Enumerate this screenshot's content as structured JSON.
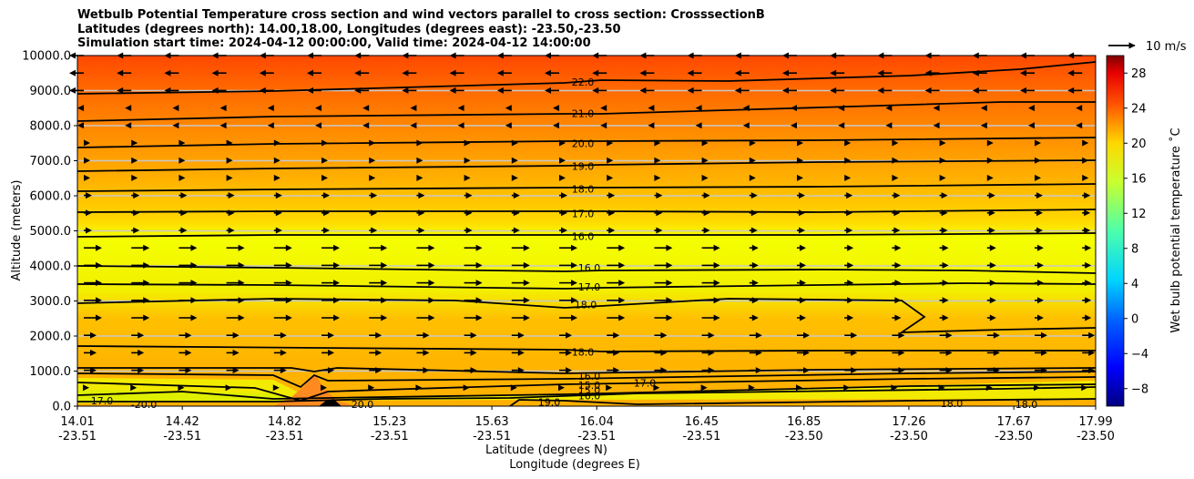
{
  "chart_data": {
    "type": "heatmap",
    "title_lines": [
      "Wetbulb Potential Temperature cross section and wind vectors parallel to cross section: CrosssectionB",
      "Latitudes (degrees north): 14.00,18.00, Longitudes (degrees east): -23.50,-23.50",
      "Simulation start time: 2024-04-12 00:00:00, Valid time: 2024-04-12 14:00:00"
    ],
    "xlabel_lat": "Latitude (degrees N)",
    "xlabel_lon": "Longitude (degrees E)",
    "ylabel": "Altitude (meters)",
    "xlim": [
      14.01,
      17.99
    ],
    "ylim": [
      0,
      10000
    ],
    "x_ticks": [
      {
        "lat": "14.01",
        "lon": "-23.51"
      },
      {
        "lat": "14.42",
        "lon": "-23.51"
      },
      {
        "lat": "14.82",
        "lon": "-23.51"
      },
      {
        "lat": "15.23",
        "lon": "-23.51"
      },
      {
        "lat": "15.63",
        "lon": "-23.51"
      },
      {
        "lat": "16.04",
        "lon": "-23.51"
      },
      {
        "lat": "16.45",
        "lon": "-23.51"
      },
      {
        "lat": "16.85",
        "lon": "-23.50"
      },
      {
        "lat": "17.26",
        "lon": "-23.50"
      },
      {
        "lat": "17.67",
        "lon": "-23.50"
      },
      {
        "lat": "17.99",
        "lon": "-23.50"
      }
    ],
    "y_ticks": [
      "0.0",
      "1000.0",
      "2000.0",
      "3000.0",
      "4000.0",
      "5000.0",
      "6000.0",
      "7000.0",
      "8000.0",
      "9000.0",
      "10000.0"
    ],
    "colorbar": {
      "label": "Wet bulb potential temperature ˚C",
      "range": [
        -10,
        30
      ],
      "ticks": [
        "−8",
        "−4",
        "0",
        "4",
        "8",
        "12",
        "16",
        "20",
        "24",
        "28"
      ]
    },
    "contours": [
      {
        "label": "22.0",
        "alt": 9250
      },
      {
        "label": "21.0",
        "alt": 8350
      },
      {
        "label": "20.0",
        "alt": 7500
      },
      {
        "label": "19.0",
        "alt": 6850
      },
      {
        "label": "18.0",
        "alt": 6200
      },
      {
        "label": "17.0",
        "alt": 5500
      },
      {
        "label": "16.0",
        "alt": 4850
      },
      {
        "label": "16.0",
        "alt": 3950
      },
      {
        "label": "17.0",
        "alt": 3400
      },
      {
        "label": "18.0",
        "alt": 2900
      },
      {
        "label": "18.0",
        "alt": 1550
      },
      {
        "label": "16.0",
        "alt": 800
      },
      {
        "label": "15.0",
        "alt": 700
      },
      {
        "label": "15.0",
        "alt": 350
      },
      {
        "label": "16.0",
        "alt": 300
      },
      {
        "label": "19.0",
        "alt": 120
      },
      {
        "label": "18.0",
        "alt": 80
      },
      {
        "label": "18.0",
        "alt": 50
      },
      {
        "label": "17.0",
        "alt": 150
      },
      {
        "label": "20.0",
        "alt": 50
      },
      {
        "label": "-20.0",
        "alt": 50
      },
      {
        "label": "17.0",
        "alt": 630
      }
    ],
    "wind_reference": "10 m/s"
  }
}
